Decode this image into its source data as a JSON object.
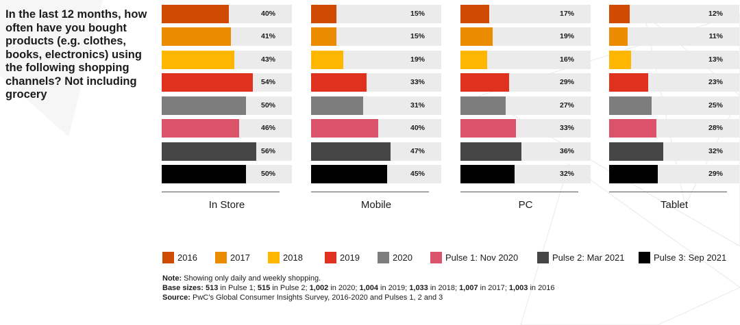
{
  "question": "In the last 12 months, how often have you bought products (e.g. clothes, books, electronics) using the following shopping channels? Not including grocery",
  "chart_data": {
    "type": "bar",
    "orientation": "horizontal",
    "ylim": [
      0,
      100
    ],
    "series_names": [
      "2016",
      "2017",
      "2018",
      "2019",
      "2020",
      "Pulse 1: Nov 2020",
      "Pulse 2: Mar 2021",
      "Pulse 3: Sep 2021"
    ],
    "colors": [
      "#d04a02",
      "#eb8c00",
      "#ffb600",
      "#e0301e",
      "#7d7d7d",
      "#db536a",
      "#464646",
      "#000000"
    ],
    "panels": [
      {
        "title": "In Store",
        "values": [
          40,
          41,
          43,
          54,
          50,
          46,
          56,
          50
        ],
        "labels": [
          "40%",
          "41%",
          "43%",
          "54%",
          "50%",
          "46%",
          "56%",
          "50%"
        ]
      },
      {
        "title": "Mobile",
        "values": [
          15,
          15,
          19,
          33,
          31,
          40,
          47,
          45
        ],
        "labels": [
          "15%",
          "15%",
          "19%",
          "33%",
          "31%",
          "40%",
          "47%",
          "45%"
        ]
      },
      {
        "title": "PC",
        "values": [
          17,
          19,
          16,
          29,
          27,
          33,
          36,
          32
        ],
        "labels": [
          "17%",
          "19%",
          "16%",
          "29%",
          "27%",
          "33%",
          "36%",
          "32%"
        ]
      },
      {
        "title": "Tablet",
        "values": [
          12,
          11,
          13,
          23,
          25,
          28,
          32,
          29
        ],
        "labels": [
          "12%",
          "11%",
          "13%",
          "23%",
          "25%",
          "28%",
          "32%",
          "29%"
        ]
      }
    ]
  },
  "notes": {
    "note_label": "Note:",
    "note_text": " Showing only daily and weekly shopping.",
    "base_label": "Base sizes: ",
    "base_parts": [
      {
        "b": "513",
        "t": " in Pulse 1; "
      },
      {
        "b": "515",
        "t": " in Pulse 2; "
      },
      {
        "b": "1,002",
        "t": " in 2020; "
      },
      {
        "b": "1,004",
        "t": " in 2019; "
      },
      {
        "b": "1,033",
        "t": " in 2018; "
      },
      {
        "b": "1,007",
        "t": " in 2017; "
      },
      {
        "b": "1,003",
        "t": " in 2016"
      }
    ],
    "source_label": "Source:",
    "source_text": " PwC’s Global Consumer Insights Survey, 2016-2020 and Pulses 1, 2 and 3"
  }
}
